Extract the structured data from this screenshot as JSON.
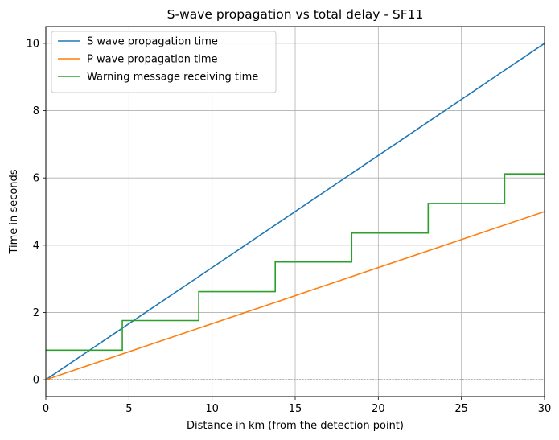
{
  "chart_data": {
    "type": "line",
    "title": "S-wave propagation vs total delay - SF11",
    "xlabel": "Distance in km (from the detection point)",
    "ylabel": "Time in seconds",
    "xlim": [
      0,
      30
    ],
    "ylim": [
      -0.5,
      10.5
    ],
    "xticks": [
      0,
      5,
      10,
      15,
      20,
      25,
      30
    ],
    "yticks": [
      0,
      2,
      4,
      6,
      8,
      10
    ],
    "grid": true,
    "legend_position": "upper-left",
    "series": [
      {
        "name": "S wave propagation time",
        "color": "#1f77b4",
        "x": [
          0,
          30
        ],
        "y": [
          0,
          10
        ]
      },
      {
        "name": "P wave propagation time",
        "color": "#ff7f0e",
        "x": [
          0,
          30
        ],
        "y": [
          0,
          5
        ]
      },
      {
        "name": "Warning message receiving time",
        "color": "#2ca02c",
        "step": "post",
        "x": [
          0,
          4.6,
          9.2,
          13.8,
          18.4,
          23.0,
          27.6,
          30
        ],
        "y": [
          0.88,
          1.76,
          2.62,
          3.5,
          4.36,
          5.24,
          6.12,
          6.12
        ]
      }
    ],
    "reference_line": {
      "y": 0,
      "style": "dashed",
      "color": "#000000"
    }
  }
}
